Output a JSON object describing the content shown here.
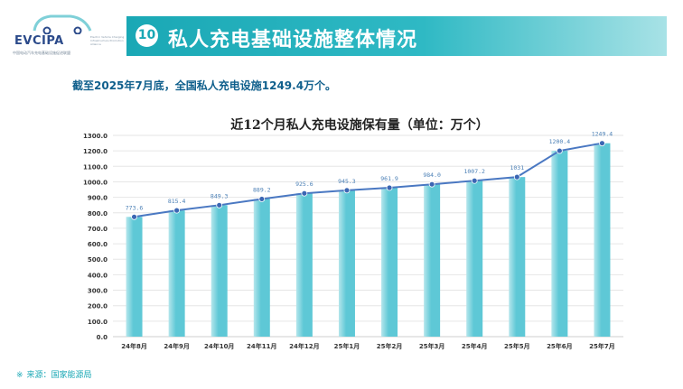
{
  "header": {
    "logo_text": "EVCIPA",
    "logo_sub": "Electric Vehicle Charging Infrastructure Promotion Alliance",
    "logo_caption": "中国电动汽车充电基础设施促进联盟",
    "badge_number": "10",
    "title": "私人充电基础设施整体情况"
  },
  "summary": "截至2025年7月底，全国私人充电设施1249.4万个。",
  "chart_data": {
    "type": "bar",
    "title": "近12个月私人充电设施保有量（单位：万个）",
    "categories": [
      "24年8月",
      "24年9月",
      "24年10月",
      "24年11月",
      "24年12月",
      "25年1月",
      "25年2月",
      "25年3月",
      "25年4月",
      "25年5月",
      "25年6月",
      "25年7月"
    ],
    "values": [
      773.6,
      815.4,
      849.3,
      889.2,
      925.6,
      945.3,
      961.9,
      984.0,
      1007.2,
      1031,
      1200.4,
      1249.4
    ],
    "value_labels": [
      "773.6",
      "815.4",
      "849.3",
      "889.2",
      "925.6",
      "945.3",
      "961.9",
      "984.0",
      "1007.2",
      "1031",
      "1200.4",
      "1249.4"
    ],
    "overlay": "line",
    "ylim": [
      0,
      1300
    ],
    "yticks": [
      "0.0",
      "100.0",
      "200.0",
      "300.0",
      "400.0",
      "500.0",
      "600.0",
      "700.0",
      "800.0",
      "900.0",
      "1000.0",
      "1100.0",
      "1200.0",
      "1300.0"
    ],
    "grid": true,
    "colors": {
      "bar": "#5ec8d6",
      "bar_light": "#b5e6ec",
      "line": "#4a78c2",
      "marker": "#3b66b3"
    }
  },
  "source": {
    "icon": "asterisk-icon",
    "icon_glyph": "※",
    "text": "来源：国家能源局"
  }
}
